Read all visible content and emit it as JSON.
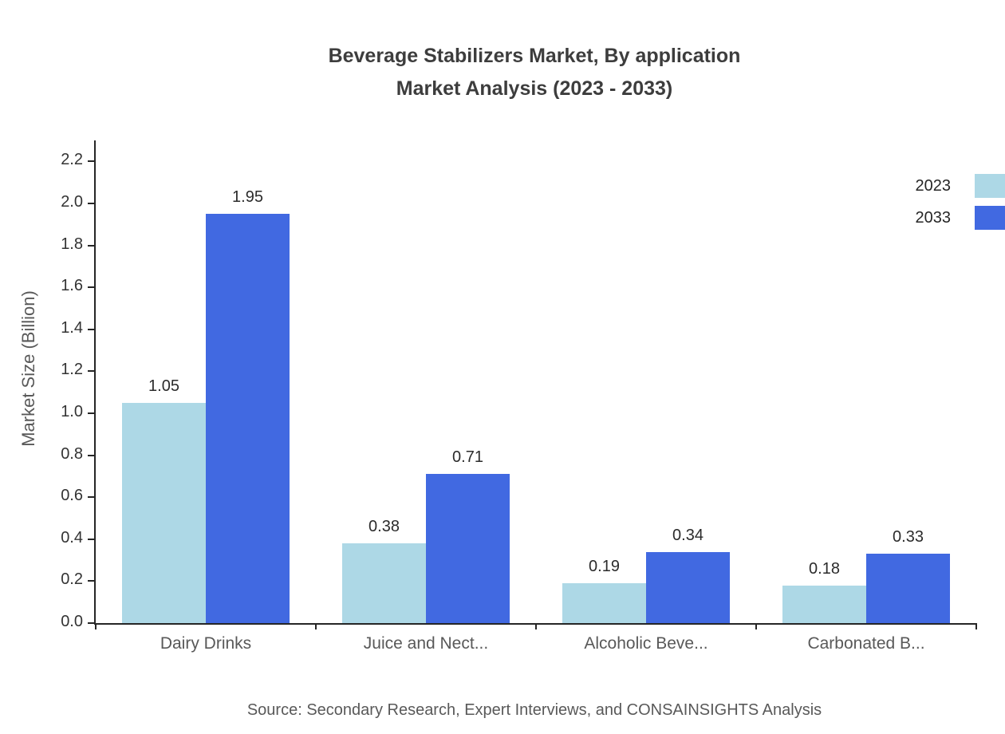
{
  "title": {
    "line1": "Beverage Stabilizers Market, By application",
    "line2": "Market Analysis (2023 - 2033)"
  },
  "source": "Source: Secondary Research, Expert Interviews, and CONSAINSIGHTS Analysis",
  "chart_data": {
    "type": "bar",
    "title": "Beverage Stabilizers Market, By application Market Analysis (2023 - 2033)",
    "categories": [
      "Dairy Drinks",
      "Juice and Nect...",
      "Alcoholic Beve...",
      "Carbonated B..."
    ],
    "series": [
      {
        "name": "2023",
        "color": "#add8e6",
        "values": [
          1.05,
          0.38,
          0.19,
          0.18
        ]
      },
      {
        "name": "2033",
        "color": "#4169e1",
        "values": [
          1.95,
          0.71,
          0.34,
          0.33
        ]
      }
    ],
    "xlabel": "",
    "ylabel": "Market Size (Billion)",
    "ylim": [
      0,
      2.3
    ],
    "yticks": [
      0.0,
      0.2,
      0.4,
      0.6,
      0.8,
      1.0,
      1.2,
      1.4,
      1.6,
      1.8,
      2.0,
      2.2
    ],
    "grid": false,
    "legend_position": "top-right",
    "value_labels": true
  }
}
